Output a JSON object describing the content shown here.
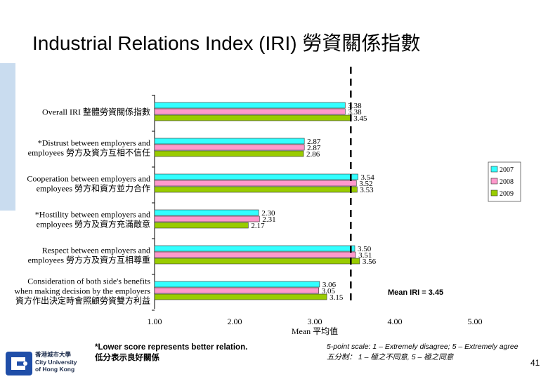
{
  "title": "Industrial Relations Index (IRI) 勞資關係指數",
  "chart_data": {
    "type": "bar",
    "orientation": "horizontal",
    "categories": [
      [
        "Overall IRI 整體勞資關係指數"
      ],
      [
        "*Distrust between employers and",
        "employees 勞方及資方互相不信任"
      ],
      [
        "Cooperation between employers and",
        "employees 勞方和資方並力合作"
      ],
      [
        "*Hostility between employers and",
        "employees 勞方及資方充滿敵意"
      ],
      [
        "Respect between employers and",
        "employees 勞方方及資方互相尊重"
      ],
      [
        "Consideration of both side's benefits",
        "when making decision by the employers",
        "資方作出決定時會照顧勞資雙方利益"
      ]
    ],
    "series": [
      {
        "name": "2007",
        "color": "#33ffff",
        "values": [
          3.38,
          2.87,
          3.54,
          2.3,
          3.5,
          3.06
        ]
      },
      {
        "name": "2008",
        "color": "#ff99cc",
        "values": [
          3.38,
          2.87,
          3.52,
          2.31,
          3.51,
          3.05
        ]
      },
      {
        "name": "2009",
        "color": "#99cc00",
        "values": [
          3.45,
          2.86,
          3.53,
          2.17,
          3.56,
          3.15
        ]
      }
    ],
    "value_labels": [
      [
        "3.38",
        "3.38",
        "3.45"
      ],
      [
        "2.87",
        "2.87",
        "2.86"
      ],
      [
        "3.54",
        "3.52",
        "3.53"
      ],
      [
        "2.30",
        "2.31",
        "2.17"
      ],
      [
        "3.50",
        "3.51",
        "3.56"
      ],
      [
        "3.06",
        "3.05",
        "3.15"
      ]
    ],
    "xlim": [
      1,
      5
    ],
    "xticks": [
      "1.00",
      "2.00",
      "3.00",
      "4.00",
      "5.00"
    ],
    "xlabel": "Mean 平均值",
    "reference_line": {
      "value": 3.45,
      "label": "Mean IRI = 3.45"
    },
    "legend_position": "right"
  },
  "footnote": [
    "*Lower score represents better relation.",
    "低分表示良好關係"
  ],
  "scale_note": [
    "5-point scale: 1 – Extremely disagree; 5 – Extremely agree",
    "五分制： 1 – 極之不同意, 5 – 極之同意"
  ],
  "page_number": "41",
  "logo": {
    "lines": [
      "香港城市大學",
      "City University",
      "of Hong Kong"
    ],
    "color": "#1f4ea8"
  }
}
